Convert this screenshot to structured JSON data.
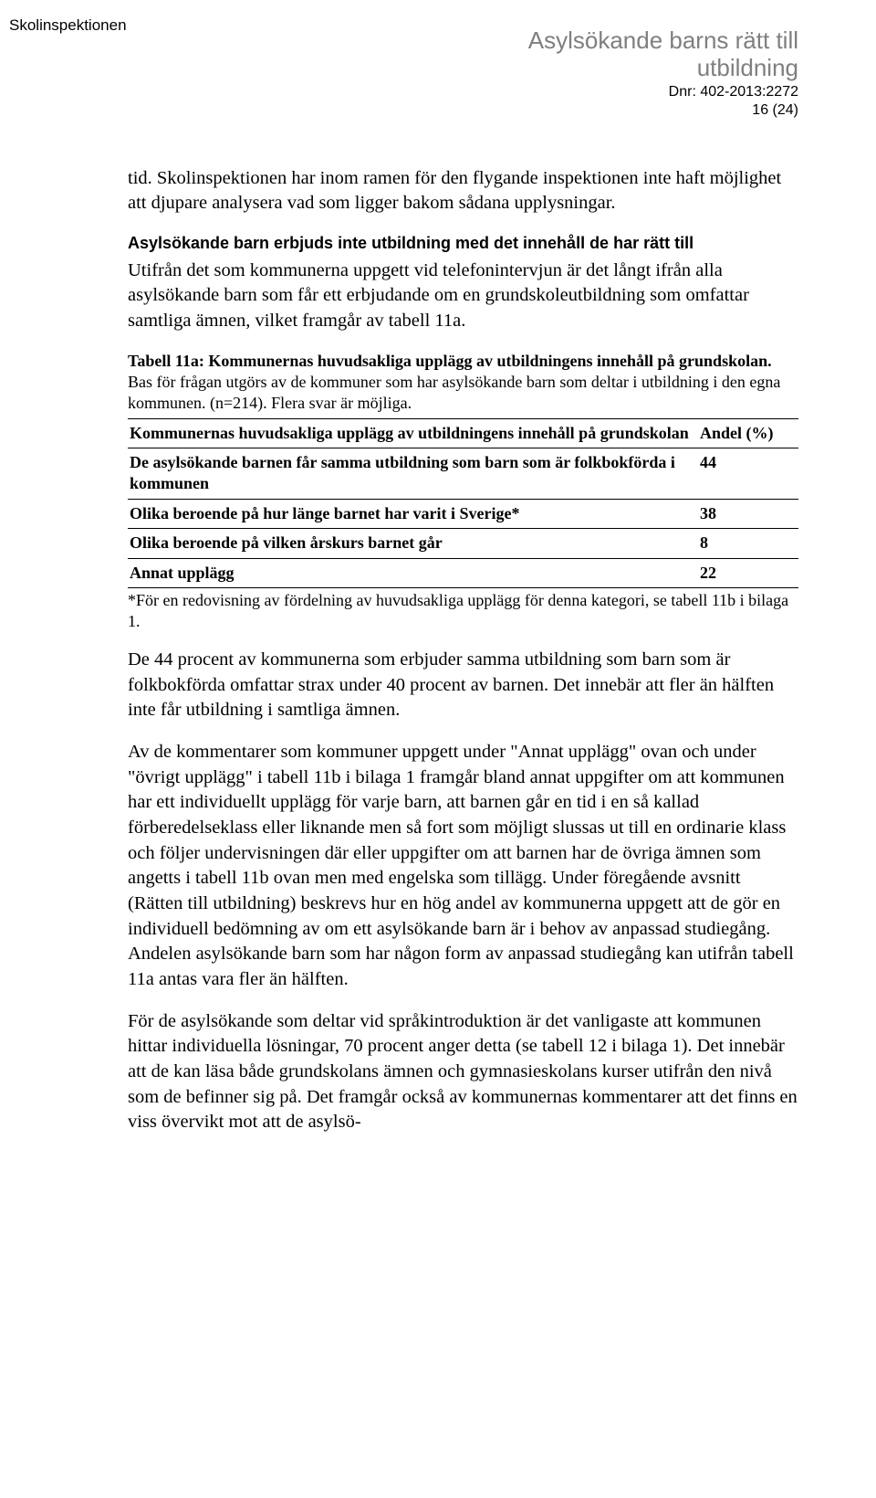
{
  "header": {
    "org": "Skolinspektionen",
    "title_line1": "Asylsökande barns rätt till",
    "title_line2": "utbildning",
    "dnr": "Dnr: 402-2013:2272",
    "page": "16 (24)"
  },
  "paragraphs": {
    "p1": "tid. Skolinspektionen har inom ramen för den flygande inspektionen inte haft möjlighet att djupare analysera vad som ligger bakom sådana upplysningar.",
    "subhead": "Asylsökande barn erbjuds inte utbildning med det innehåll de har rätt till",
    "p2": "Utifrån det som kommunerna uppgett vid telefonintervjun är det långt ifrån alla asylsökande barn som får ett erbjudande om en grundskoleutbildning som omfattar samtliga ämnen, vilket framgår av tabell 11a.",
    "caption_bold": "Tabell 11a: Kommunernas huvudsakliga upplägg av utbildningens innehåll på grundskolan.",
    "caption_rest": " Bas för frågan utgörs av de kommuner som har asylsökande barn som deltar i utbildning i den egna kommunen. (n=214). Flera svar är möjliga.",
    "footnote": "*För en redovisning av fördelning av huvudsakliga upplägg för denna kategori, se tabell 11b i bilaga 1.",
    "p3": "De 44 procent av kommunerna som erbjuder samma utbildning som barn som är folkbokförda omfattar strax under 40 procent av barnen. Det innebär att fler än hälften inte får utbildning i samtliga ämnen.",
    "p4": "Av de kommentarer som kommuner uppgett under \"Annat upplägg\" ovan och under \"övrigt upplägg\" i tabell 11b i bilaga 1 framgår bland annat uppgifter om att kommunen har ett individuellt upplägg för varje barn, att barnen går en tid i en så kallad förberedelseklass eller liknande men så fort som möjligt slussas ut till en ordinarie klass och följer undervisningen där eller uppgifter om att barnen har de övriga ämnen som angetts i tabell 11b ovan men med engelska som tillägg. Under föregående avsnitt (Rätten till utbildning) beskrevs hur en hög andel av kommunerna uppgett att de gör en individuell bedömning av om ett asylsökande barn är i behov av anpassad studiegång. Andelen asylsökande barn som har någon form av anpassad studiegång kan utifrån tabell 11a antas vara fler än hälften.",
    "p5": "För de asylsökande som deltar vid språkintroduktion är det vanligaste att kommunen hittar individuella lösningar, 70 procent anger detta (se tabell 12 i bilaga 1). Det innebär att de kan läsa både grundskolans ämnen och gymnasieskolans kurser utifrån den nivå som de befinner sig på. Det framgår också av kommunernas kommentarer att det finns en viss övervikt mot att de asylsö-"
  },
  "table11a": {
    "type": "table",
    "columns": [
      {
        "label": "Kommunernas huvudsakliga upplägg av utbildningens innehåll på grundskolan"
      },
      {
        "label": "Andel (%)"
      }
    ],
    "rows": [
      {
        "label": "De asylsökande barnen får samma utbildning som barn som är folkbokförda i kommunen",
        "value": "44"
      },
      {
        "label": "Olika beroende på hur länge barnet har varit i Sverige*",
        "value": "38"
      },
      {
        "label": "Olika beroende på vilken årskurs barnet går",
        "value": "8"
      },
      {
        "label": "Annat upplägg",
        "value": "22"
      }
    ],
    "border_color": "#000000",
    "font_weight": "bold",
    "font_size_pt": 13
  }
}
